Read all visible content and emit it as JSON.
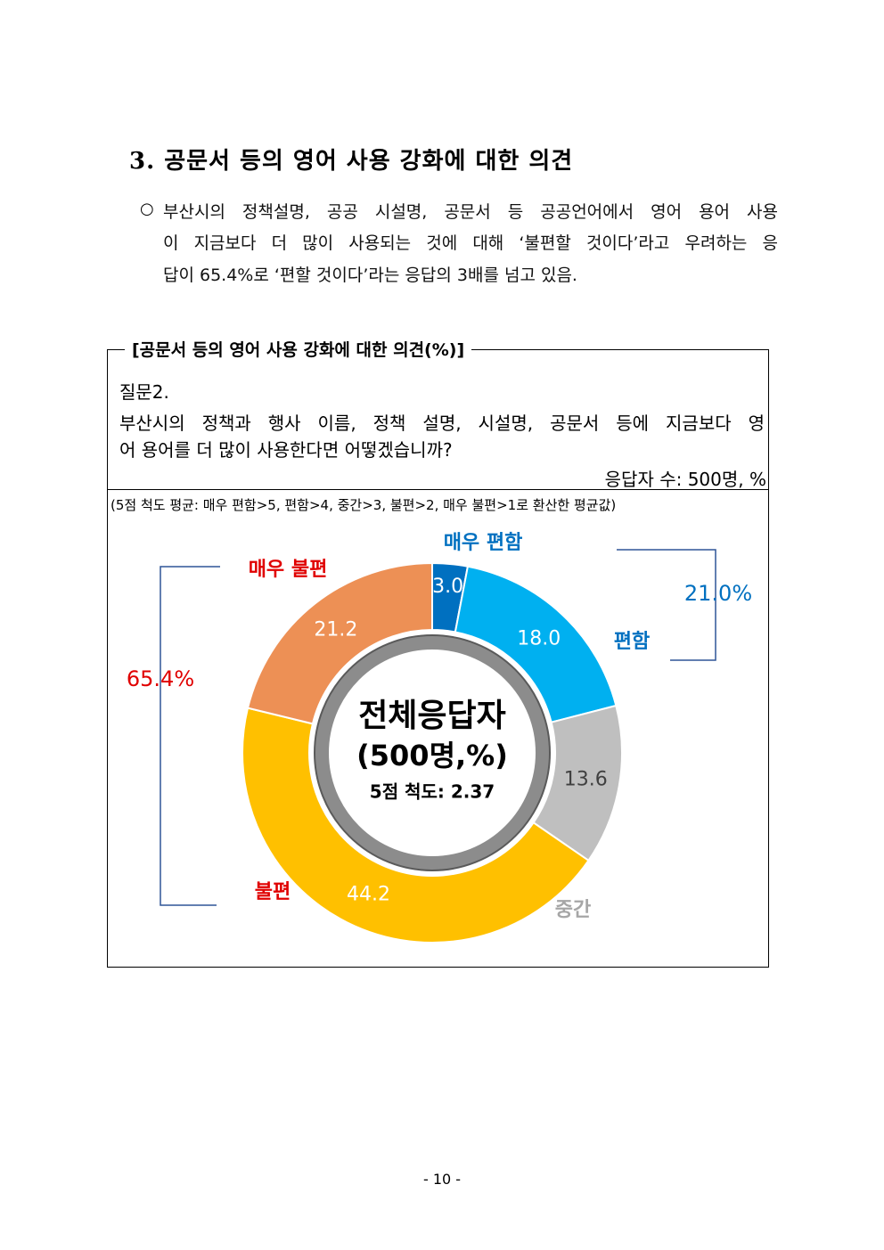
{
  "heading": "3. 공문서 등의 영어 사용 강화에 대한 의견",
  "bullet_lines": [
    "부산시의 정책설명, 공공 시설명, 공문서 등 공공언어에서 영어 용어 사용",
    "이 지금보다 더 많이 사용되는 것에 대해 ‘불편할 것이다’라고 우려하는 응",
    "답이 65.4%로 ‘편할 것이다’라는 응답의 3배를 넘고 있음."
  ],
  "figure": {
    "title": "[공문서 등의 영어 사용 강화에 대한 의견(%)]",
    "question_label": "질문2.",
    "question_lines": [
      "부산시의 정책과 행사 이름, 정책 설명, 시설명, 공문서 등에 지금보다 영",
      "어 용어를 더 많이 사용한다면 어떻겠습니까?"
    ],
    "respondents": "응답자 수: 500명, %",
    "note": "(5점 척도 평균: 매우 편함>5, 편함>4, 중간>3, 불편>2, 매우 불편>1로 환산한 평균값)"
  },
  "chart_data": {
    "type": "donut",
    "categories": [
      "매우 편함",
      "편함",
      "중간",
      "불편",
      "매우 불편"
    ],
    "values": [
      3.0,
      18.0,
      13.6,
      44.2,
      21.2
    ],
    "value_labels": [
      "3.0",
      "18.0",
      "13.6",
      "44.2",
      "21.2"
    ],
    "colors": [
      "#0070c0",
      "#00b0f0",
      "#bfbfbf",
      "#ffc000",
      "#ed9055"
    ],
    "category_label_colors": [
      "#0070c0",
      "#0070c0",
      "#a6a6a6",
      "#e00000",
      "#e00000"
    ],
    "center_text": [
      "전체응답자",
      "(500명,%)",
      "5점 척도: 2.37"
    ],
    "annotations": [
      "21.0%",
      "65.4%"
    ]
  },
  "page_number": "- 10 -"
}
